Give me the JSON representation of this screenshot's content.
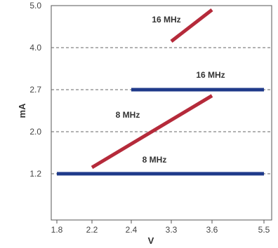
{
  "chart_data": {
    "type": "line",
    "xlabel": "V",
    "ylabel": "mA",
    "x_ticks": [
      "1.8",
      "2.2",
      "2.4",
      "3.3",
      "3.6",
      "5.5"
    ],
    "y_ticks": [
      "1.2",
      "2.0",
      "2.7",
      "4.0",
      "5.0"
    ],
    "grid": "dashed horizontal at y ticks",
    "series": [
      {
        "name": "16 MHz",
        "color": "#b52a3a",
        "points": [
          [
            "3.3",
            4.15
          ],
          [
            "3.6",
            4.9
          ]
        ]
      },
      {
        "name": "16 MHz",
        "color": "#1f3a8a",
        "points": [
          [
            "2.4",
            2.7
          ],
          [
            "5.5",
            2.7
          ]
        ]
      },
      {
        "name": "8 MHz",
        "color": "#b52a3a",
        "points": [
          [
            "2.2",
            1.32
          ],
          [
            "3.6",
            2.6
          ]
        ]
      },
      {
        "name": "8 MHz",
        "color": "#1f3a8a",
        "points": [
          [
            "1.8",
            1.2
          ],
          [
            "5.5",
            1.2
          ]
        ]
      }
    ]
  }
}
